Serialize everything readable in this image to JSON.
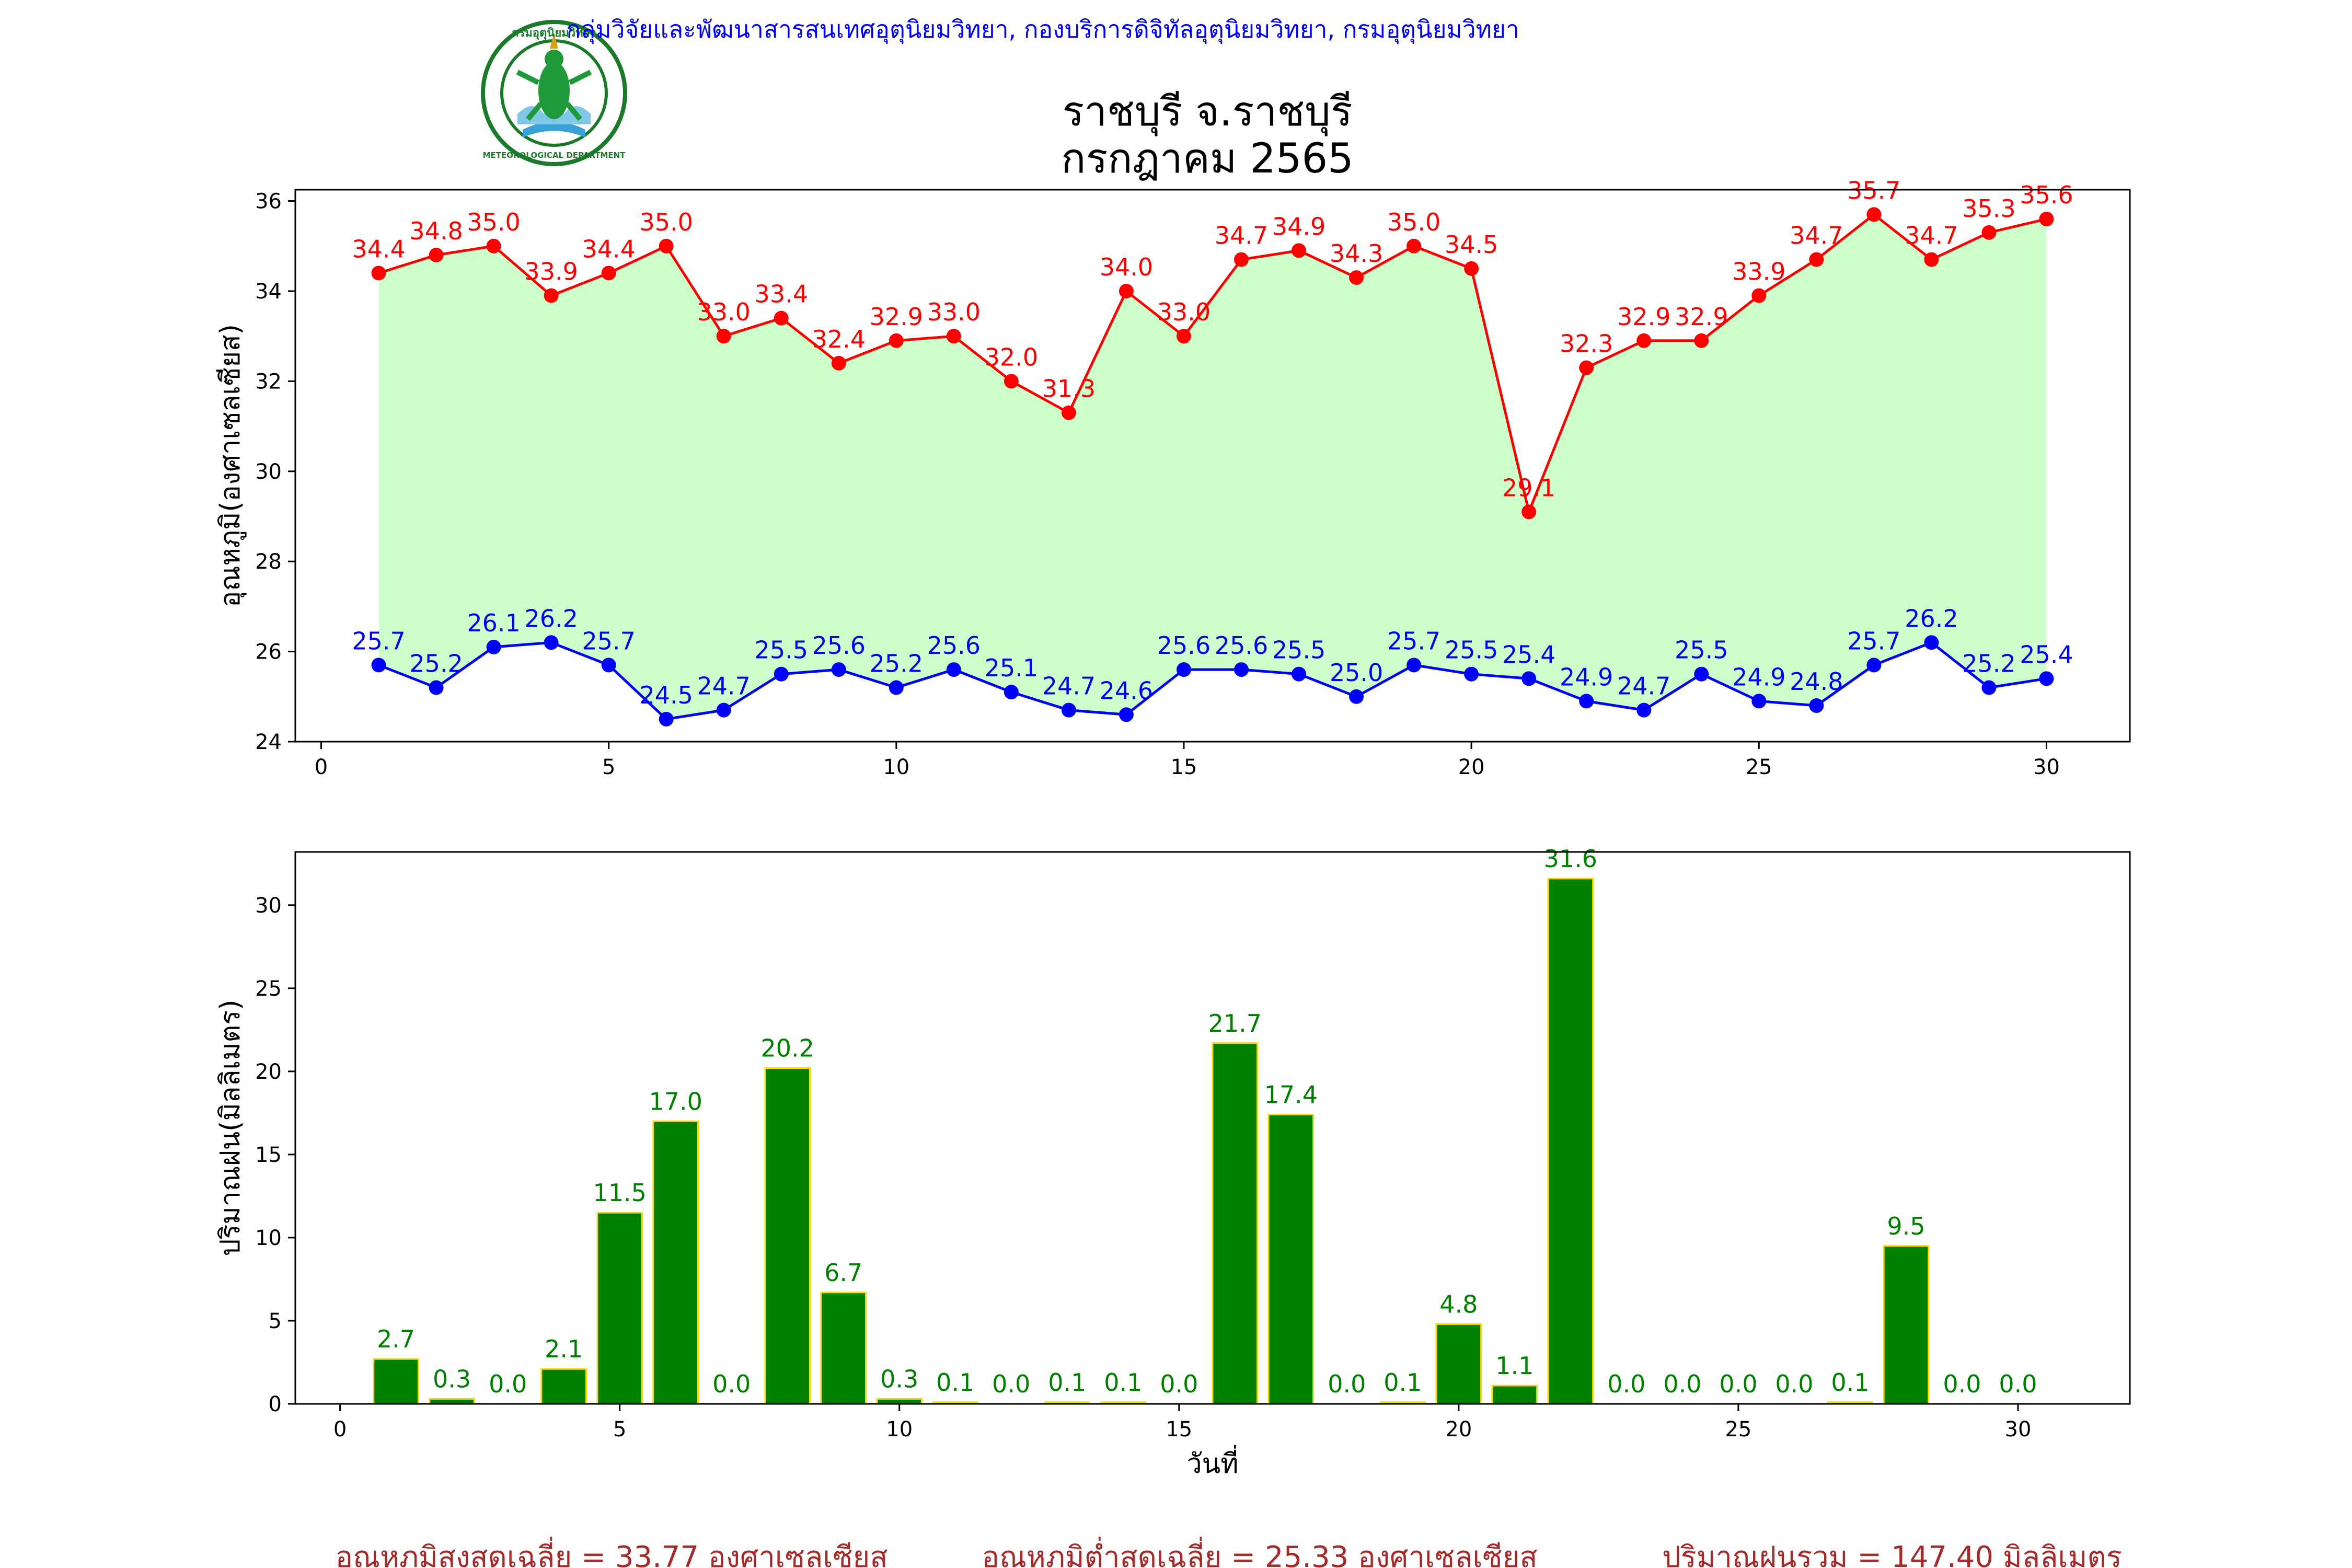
{
  "header": {
    "credit": "กลุ่มวิจัยและพัฒนาสารสนเทศอุตุนิยมวิทยา, กองบริการดิจิทัลอุตุนิยมวิทยา, กรมอุตุนิยมวิทยา",
    "station": "ราชบุรี จ.ราชบุรี",
    "month": "กรกฎาคม 2565",
    "logo_text_top": "กรมอุตุนิยมวิทยา",
    "logo_text_bottom": "METEOROLOGICAL DEPARTMENT"
  },
  "footer": {
    "avg_max": "อุณหภูมิสูงสุดเฉลี่ย = 33.77 องศาเซลเซียส",
    "avg_min": "อุณหภูมิต่ำสุดเฉลี่ย = 25.33 องศาเซลเซียส",
    "rain_total": "ปริมาณฝนรวม = 147.40 มิลลิเมตร"
  },
  "colors": {
    "max_line": "#ff0000",
    "min_line": "#0000ff",
    "fill": "#ccffcc",
    "bar": "#008000",
    "bar_edge": "#ffd700",
    "credit": "#0000ff",
    "footer": "#a52a2a"
  },
  "chart_data": [
    {
      "type": "line",
      "ylabel": "อุณหภูมิ(องศาเซลเซียส)",
      "xlim": [
        -0.45,
        31.45
      ],
      "ylim": [
        24,
        36.25
      ],
      "xticks": [
        0,
        5,
        10,
        15,
        20,
        25,
        30
      ],
      "yticks": [
        24,
        26,
        28,
        30,
        32,
        34,
        36
      ],
      "x": [
        1,
        2,
        3,
        4,
        5,
        6,
        7,
        8,
        9,
        10,
        11,
        12,
        13,
        14,
        15,
        16,
        17,
        18,
        19,
        20,
        21,
        22,
        23,
        24,
        25,
        26,
        27,
        28,
        29,
        30
      ],
      "series": [
        {
          "key": "max",
          "values": [
            34.4,
            34.8,
            35.0,
            33.9,
            34.4,
            35.0,
            33.0,
            33.4,
            32.4,
            32.9,
            33.0,
            32.0,
            31.3,
            34.0,
            33.0,
            34.7,
            34.9,
            34.3,
            35.0,
            34.5,
            29.1,
            32.3,
            32.9,
            32.9,
            33.9,
            34.7,
            35.7,
            34.7,
            35.3,
            35.6
          ]
        },
        {
          "key": "min",
          "values": [
            25.7,
            25.2,
            26.1,
            26.2,
            25.7,
            24.5,
            24.7,
            25.5,
            25.6,
            25.2,
            25.6,
            25.1,
            24.7,
            24.6,
            25.6,
            25.6,
            25.5,
            25.0,
            25.7,
            25.5,
            25.4,
            24.9,
            24.7,
            25.5,
            24.9,
            24.8,
            25.7,
            26.2,
            25.2,
            25.4
          ]
        }
      ],
      "labels": {
        "max": [
          "34.4",
          "34.8",
          "35.0",
          "33.9",
          "34.4",
          "35.0",
          "33.0",
          "33.4",
          "32.4",
          "32.9",
          "33.0",
          "32.0",
          "31.3",
          "34.0",
          "33.0",
          "34.7",
          "34.9",
          "34.3",
          "35.0",
          "34.5",
          "29.1",
          "32.3",
          "32.9",
          "32.9",
          "33.9",
          "34.7",
          "35.7",
          "34.7",
          "35.3",
          "35.6"
        ],
        "min": [
          "25.7",
          "25.2",
          "26.1",
          "26.2",
          "25.7",
          "24.5",
          "24.7",
          "25.5",
          "25.6",
          "25.2",
          "25.6",
          "25.1",
          "24.7",
          "24.6",
          "25.6",
          "25.6",
          "25.5",
          "25.0",
          "25.7",
          "25.5",
          "25.4",
          "24.9",
          "24.7",
          "25.5",
          "24.9",
          "24.8",
          "25.7",
          "26.2",
          "25.2",
          "25.4"
        ]
      }
    },
    {
      "type": "bar",
      "xlabel": "วันที่",
      "ylabel": "ปริมาณฝน(มิลลิเมตร)",
      "xlim": [
        -0.8,
        32.0
      ],
      "ylim": [
        0,
        33.2
      ],
      "xticks": [
        0,
        5,
        10,
        15,
        20,
        25,
        30
      ],
      "yticks": [
        0,
        5,
        10,
        15,
        20,
        25,
        30
      ],
      "x": [
        1,
        2,
        3,
        4,
        5,
        6,
        7,
        8,
        9,
        10,
        11,
        12,
        13,
        14,
        15,
        16,
        17,
        18,
        19,
        20,
        21,
        22,
        23,
        24,
        25,
        26,
        27,
        28,
        29,
        30
      ],
      "values": [
        2.7,
        0.3,
        0.0,
        2.1,
        11.5,
        17.0,
        0.0,
        20.2,
        6.7,
        0.3,
        0.1,
        0.0,
        0.1,
        0.1,
        0.0,
        21.7,
        17.4,
        0.0,
        0.1,
        4.8,
        1.1,
        31.6,
        0.0,
        0.0,
        0.0,
        0.0,
        0.1,
        9.5,
        0.0,
        0.0
      ],
      "labels": [
        "2.7",
        "0.3",
        "0.0",
        "2.1",
        "11.5",
        "17.0",
        "0.0",
        "20.2",
        "6.7",
        "0.3",
        "0.1",
        "0.0",
        "0.1",
        "0.1",
        "0.0",
        "21.7",
        "17.4",
        "0.0",
        "0.1",
        "4.8",
        "1.1",
        "31.6",
        "0.0",
        "0.0",
        "0.0",
        "0.0",
        "0.1",
        "9.5",
        "0.0",
        "0.0"
      ]
    }
  ]
}
